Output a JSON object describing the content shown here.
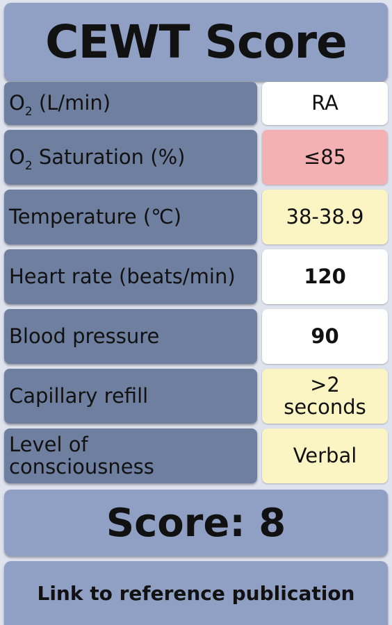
{
  "title": "CEWT Score",
  "rows": [
    {
      "label_prefix": "O",
      "label_sub": "2",
      "label_suffix": " (L/min)",
      "value": "RA",
      "value_color": "#ffffff"
    },
    {
      "label_prefix": "O",
      "label_sub": "2",
      "label_suffix": " Saturation (%)",
      "value": "≤85",
      "value_color": "#f4b1b4"
    },
    {
      "label": "Temperature (℃)",
      "value": "38-38.9",
      "value_color": "#fbf5c3"
    },
    {
      "label": "Heart rate (beats/min)",
      "value": "120",
      "value_color": "#ffffff"
    },
    {
      "label": "Blood pressure",
      "value": "90",
      "value_color": "#ffffff"
    },
    {
      "label": "Capillary refill",
      "value": ">2 seconds",
      "value_color": "#fbf5c3"
    },
    {
      "label": "Level of consciousness",
      "value": "Verbal",
      "value_color": "#fbf5c3"
    }
  ],
  "score_text": "Score: 8",
  "link_text": "Link to reference publication",
  "colors": {
    "background": "#dfe3ee",
    "header": "#8fa0c4",
    "label": "#6f7fa0",
    "red": "#f4b1b4",
    "yellow": "#fbf5c3",
    "white": "#ffffff"
  }
}
